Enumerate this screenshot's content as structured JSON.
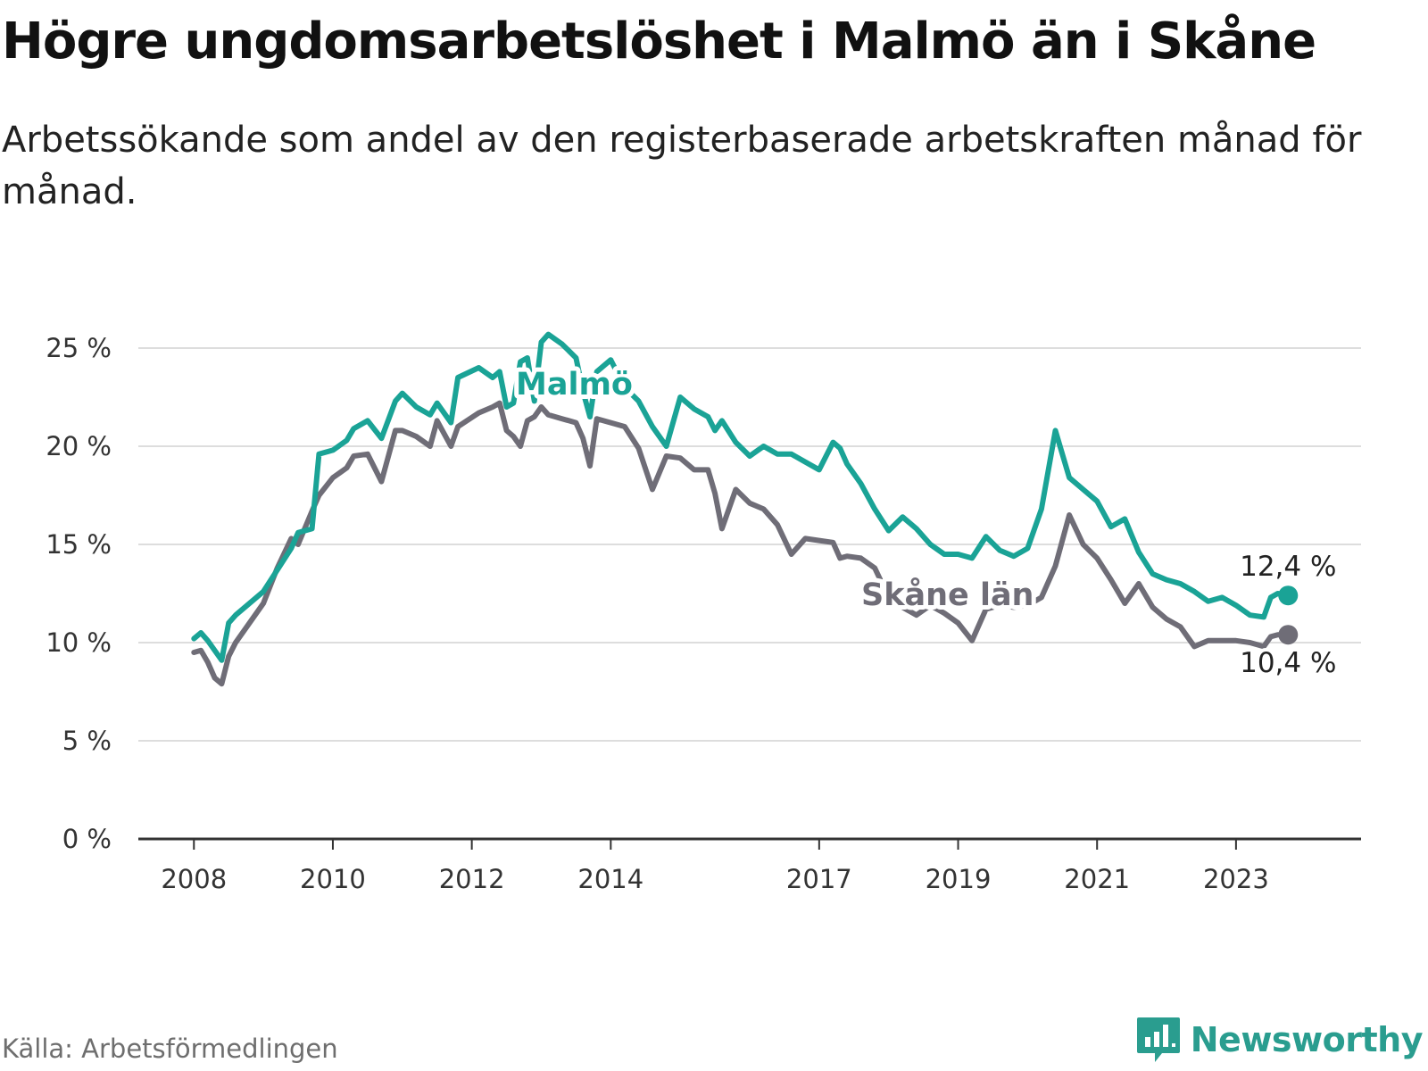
{
  "header": {
    "title": "Högre ungdomsarbetslöshet i Malmö än i Skåne",
    "subtitle": "Arbetssökande som andel av den registerbaserade arbetskraften månad för månad."
  },
  "footer": {
    "source": "Källa: Arbetsförmedlingen",
    "brand": "Newsworthy"
  },
  "colors": {
    "malmo": "#1aa396",
    "skane": "#6f6d77",
    "grid": "#dddddd",
    "axis": "#333333",
    "brand": "#2a9d8f"
  },
  "chart_data": {
    "type": "line",
    "title": "Högre ungdomsarbetslöshet i Malmö än i Skåne",
    "xlabel": "",
    "ylabel": "",
    "ylim": [
      0,
      25
    ],
    "xlim": [
      2007.2,
      2024.8
    ],
    "yticks": [
      0,
      5,
      10,
      15,
      20,
      25
    ],
    "ytick_labels": [
      "0 %",
      "5 %",
      "10 %",
      "15 %",
      "20 %",
      "25 %"
    ],
    "xticks": [
      2008,
      2010,
      2012,
      2014,
      2017,
      2019,
      2021,
      2023
    ],
    "xtick_labels": [
      "2008",
      "2010",
      "2012",
      "2014",
      "2017",
      "2019",
      "2021",
      "2023"
    ],
    "grid": true,
    "legend": "inline labels",
    "series": [
      {
        "name": "Malmö",
        "end_label": "12,4 %",
        "x": [
          2008.0,
          2008.1,
          2008.2,
          2008.4,
          2008.5,
          2008.6,
          2009.0,
          2009.4,
          2009.5,
          2009.7,
          2009.8,
          2010.0,
          2010.2,
          2010.3,
          2010.5,
          2010.7,
          2010.9,
          2011.0,
          2011.2,
          2011.4,
          2011.5,
          2011.7,
          2011.8,
          2012.1,
          2012.3,
          2012.4,
          2012.5,
          2012.6,
          2012.7,
          2012.8,
          2012.9,
          2013.0,
          2013.1,
          2013.3,
          2013.5,
          2013.6,
          2013.7,
          2013.8,
          2014.0,
          2014.2,
          2014.4,
          2014.6,
          2014.8,
          2015.0,
          2015.2,
          2015.4,
          2015.5,
          2015.6,
          2015.8,
          2016.0,
          2016.2,
          2016.4,
          2016.6,
          2016.8,
          2017.0,
          2017.2,
          2017.3,
          2017.4,
          2017.6,
          2017.8,
          2018.0,
          2018.2,
          2018.4,
          2018.6,
          2018.8,
          2019.0,
          2019.2,
          2019.4,
          2019.6,
          2019.8,
          2020.0,
          2020.2,
          2020.4,
          2020.6,
          2020.8,
          2021.0,
          2021.2,
          2021.4,
          2021.6,
          2021.8,
          2022.0,
          2022.2,
          2022.4,
          2022.6,
          2022.8,
          2023.0,
          2023.2,
          2023.4,
          2023.5,
          2023.6,
          2023.75
        ],
        "values": [
          10.2,
          10.5,
          10.1,
          9.1,
          11.0,
          11.4,
          12.6,
          14.8,
          15.6,
          15.8,
          19.6,
          19.8,
          20.3,
          20.9,
          21.3,
          20.4,
          22.3,
          22.7,
          22.0,
          21.6,
          22.2,
          21.2,
          23.5,
          24.0,
          23.5,
          23.8,
          22.0,
          22.2,
          24.3,
          24.5,
          22.3,
          25.3,
          25.7,
          25.2,
          24.5,
          22.8,
          21.5,
          23.8,
          24.4,
          23.0,
          22.3,
          21.0,
          20.0,
          22.5,
          21.9,
          21.5,
          20.8,
          21.3,
          20.2,
          19.5,
          20.0,
          19.6,
          19.6,
          19.2,
          18.8,
          20.2,
          19.9,
          19.1,
          18.1,
          16.8,
          15.7,
          16.4,
          15.8,
          15.0,
          14.5,
          14.5,
          14.3,
          15.4,
          14.7,
          14.4,
          14.8,
          16.8,
          20.8,
          18.4,
          17.8,
          17.2,
          15.9,
          16.3,
          14.6,
          13.5,
          13.2,
          13.0,
          12.6,
          12.1,
          12.3,
          11.9,
          11.4,
          11.3,
          12.3,
          12.5,
          12.4
        ]
      },
      {
        "name": "Skåne län",
        "end_label": "10,4 %",
        "x": [
          2008.0,
          2008.1,
          2008.2,
          2008.3,
          2008.4,
          2008.5,
          2008.6,
          2009.0,
          2009.2,
          2009.4,
          2009.5,
          2009.7,
          2009.8,
          2010.0,
          2010.2,
          2010.3,
          2010.5,
          2010.7,
          2010.9,
          2011.0,
          2011.2,
          2011.4,
          2011.5,
          2011.7,
          2011.8,
          2012.1,
          2012.3,
          2012.4,
          2012.5,
          2012.6,
          2012.7,
          2012.8,
          2012.9,
          2013.0,
          2013.1,
          2013.3,
          2013.5,
          2013.6,
          2013.7,
          2013.8,
          2014.0,
          2014.2,
          2014.4,
          2014.6,
          2014.8,
          2015.0,
          2015.2,
          2015.4,
          2015.5,
          2015.6,
          2015.8,
          2016.0,
          2016.2,
          2016.4,
          2016.6,
          2016.8,
          2017.0,
          2017.2,
          2017.3,
          2017.4,
          2017.6,
          2017.8,
          2018.0,
          2018.2,
          2018.4,
          2018.6,
          2018.8,
          2019.0,
          2019.2,
          2019.4,
          2019.6,
          2019.8,
          2020.0,
          2020.2,
          2020.4,
          2020.6,
          2020.8,
          2021.0,
          2021.2,
          2021.4,
          2021.6,
          2021.8,
          2022.0,
          2022.2,
          2022.4,
          2022.6,
          2022.8,
          2023.0,
          2023.2,
          2023.4,
          2023.5,
          2023.6,
          2023.75
        ],
        "values": [
          9.5,
          9.6,
          9.0,
          8.2,
          7.9,
          9.3,
          10.0,
          12.0,
          13.8,
          15.3,
          15.0,
          16.7,
          17.5,
          18.4,
          18.9,
          19.5,
          19.6,
          18.2,
          20.8,
          20.8,
          20.5,
          20.0,
          21.3,
          20.0,
          21.0,
          21.7,
          22.0,
          22.2,
          20.8,
          20.5,
          20.0,
          21.3,
          21.5,
          22.0,
          21.6,
          21.4,
          21.2,
          20.4,
          19.0,
          21.4,
          21.2,
          21.0,
          19.9,
          17.8,
          19.5,
          19.4,
          18.8,
          18.8,
          17.6,
          15.8,
          17.8,
          17.1,
          16.8,
          16.0,
          14.5,
          15.3,
          15.2,
          15.1,
          14.3,
          14.4,
          14.3,
          13.8,
          12.3,
          11.8,
          11.4,
          11.9,
          11.5,
          11.0,
          10.1,
          11.7,
          11.9,
          11.8,
          11.9,
          12.3,
          13.9,
          16.5,
          15.0,
          14.3,
          13.2,
          12.0,
          13.0,
          11.8,
          11.2,
          10.8,
          9.8,
          10.1,
          10.1,
          10.1,
          10.0,
          9.8,
          10.3,
          10.4,
          10.4
        ]
      }
    ]
  }
}
